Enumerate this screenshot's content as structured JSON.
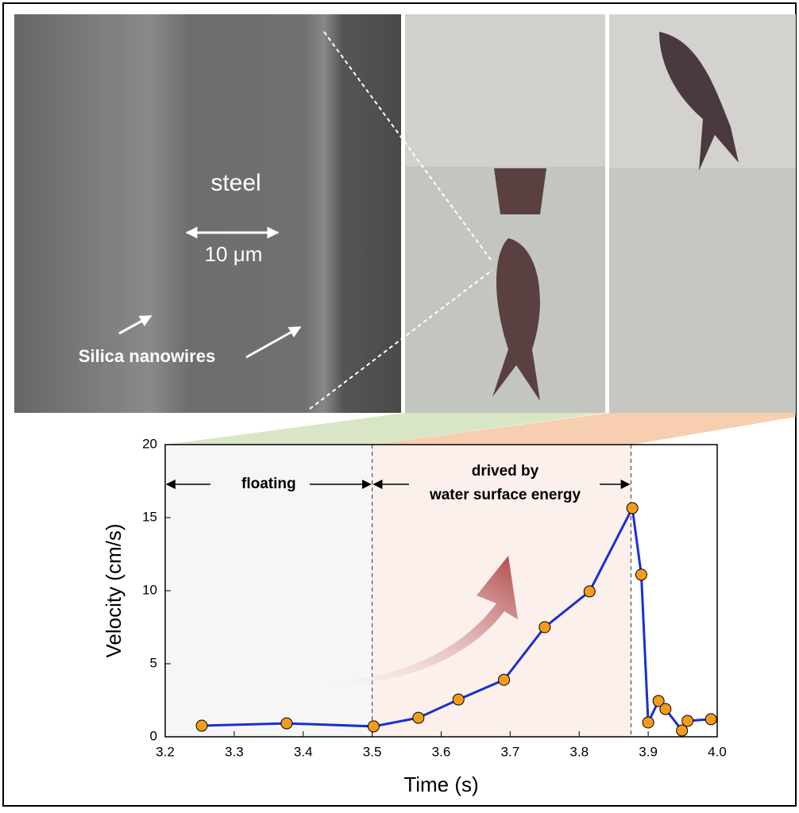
{
  "image_labels": {
    "steel": "steel",
    "scale": "10 μm",
    "nanowires": "Silica nanowires"
  },
  "chart_data": {
    "type": "line",
    "x_label": "Time (s)",
    "y_label": "Velocity (cm/s)",
    "annotations": [
      "floating",
      "drived by",
      "water surface energy"
    ],
    "phase_boundaries": [
      3.5,
      3.875
    ],
    "xlim": [
      3.2,
      4.0
    ],
    "ylim": [
      0,
      20
    ],
    "xticks": [
      3.2,
      3.3,
      3.4,
      3.5,
      3.6,
      3.7,
      3.8,
      3.9,
      {
        "value": 4,
        "label": "4.0"
      }
    ],
    "yticks": [
      0,
      5,
      10,
      15,
      20
    ],
    "x": [
      3.253,
      3.376,
      3.502,
      3.567,
      3.625,
      3.691,
      3.75,
      3.815,
      3.877,
      3.89,
      3.9,
      3.915,
      3.925,
      3.949,
      3.957,
      3.991
    ],
    "series": [
      {
        "color": "#1a2fd0",
        "marker_color": "#f39c1c",
        "values": [
          0.76,
          0.92,
          0.71,
          1.3,
          2.55,
          3.9,
          7.5,
          9.95,
          15.65,
          11.1,
          0.98,
          2.45,
          1.9,
          0.43,
          1.09,
          1.2
        ]
      }
    ]
  }
}
